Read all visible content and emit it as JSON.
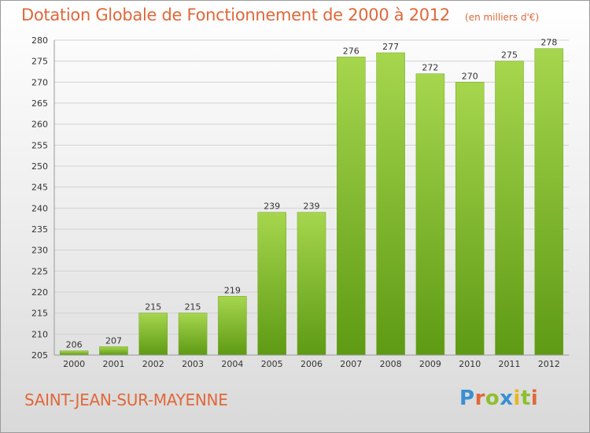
{
  "header": {
    "title": "Dotation Globale de Fonctionnement de 2000 à 2012",
    "unit": "(en milliers d'€)"
  },
  "footer": {
    "commune": "SAINT-JEAN-SUR-MAYENNE",
    "brand": "Proxiti",
    "brand_colors": [
      "#3a8fd1",
      "#e0683a",
      "#8fbf2f",
      "#3a8fd1",
      "#e8b81e",
      "#8fbf2f",
      "#e0683a"
    ]
  },
  "colors": {
    "accent": "#e0683a",
    "bar_top": "#a6d64e",
    "bar_bottom": "#5e9a14",
    "grid": "#d2d2d2",
    "axis_text": "#333333"
  },
  "chart_data": {
    "type": "bar",
    "title": "Dotation Globale de Fonctionnement de 2000 à 2012",
    "subtitle": "(en milliers d'€)",
    "xlabel": "",
    "ylabel": "",
    "categories": [
      "2000",
      "2001",
      "2002",
      "2003",
      "2004",
      "2005",
      "2006",
      "2007",
      "2008",
      "2009",
      "2010",
      "2011",
      "2012"
    ],
    "values": [
      206,
      207,
      215,
      215,
      219,
      239,
      239,
      276,
      277,
      272,
      270,
      275,
      278
    ],
    "ylim": [
      205,
      280
    ],
    "yticks": [
      205,
      210,
      215,
      220,
      225,
      230,
      235,
      240,
      245,
      250,
      255,
      260,
      265,
      270,
      275,
      280
    ],
    "grid": true,
    "legend": "none"
  }
}
